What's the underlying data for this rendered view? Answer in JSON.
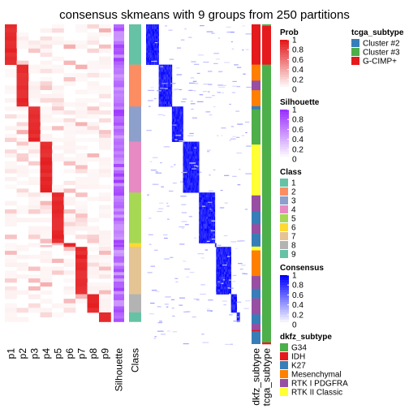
{
  "chart_data": {
    "type": "heatmap",
    "title": "consensus skmeans with 9 groups from 250 partitions",
    "partition_columns": [
      "p1",
      "p2",
      "p3",
      "p4",
      "p5",
      "p6",
      "p7",
      "p8",
      "p9"
    ],
    "annotation_columns": [
      "Silhouette",
      "Class"
    ],
    "right_annotation_columns": [
      "dkfz_subtype",
      "tcga_subtype"
    ],
    "class_blocks": [
      {
        "cls": "1",
        "frac": 0.126
      },
      {
        "cls": "2",
        "frac": 0.131
      },
      {
        "cls": "3",
        "frac": 0.11
      },
      {
        "cls": "4",
        "frac": 0.159
      },
      {
        "cls": "5",
        "frac": 0.158
      },
      {
        "cls": "6",
        "frac": 0.012
      },
      {
        "cls": "7",
        "frac": 0.148
      },
      {
        "cls": "8",
        "frac": 0.057
      },
      {
        "cls": "9",
        "frac": 0.029
      }
    ],
    "legends": {
      "prob": {
        "title": "Prob",
        "ticks": [
          "1",
          "0.8",
          "0.6",
          "0.4",
          "0.2",
          "0"
        ]
      },
      "silhouette": {
        "title": "Silhouette",
        "ticks": [
          "1",
          "0.8",
          "0.6",
          "0.4",
          "0.2",
          "0"
        ]
      },
      "class": {
        "title": "Class",
        "items": [
          {
            "label": "1",
            "color": "#66C2A5"
          },
          {
            "label": "2",
            "color": "#FC8D62"
          },
          {
            "label": "3",
            "color": "#8DA0CB"
          },
          {
            "label": "4",
            "color": "#E78AC3"
          },
          {
            "label": "5",
            "color": "#A6D854"
          },
          {
            "label": "6",
            "color": "#FFD92F"
          },
          {
            "label": "7",
            "color": "#E5C494"
          },
          {
            "label": "8",
            "color": "#B3B3B3"
          },
          {
            "label": "9",
            "color": "#66C2A5"
          }
        ]
      },
      "consensus": {
        "title": "Consensus",
        "ticks": [
          "1",
          "0.8",
          "0.6",
          "0.4",
          "0.2",
          "0"
        ]
      },
      "dkfz_subtype": {
        "title": "dkfz_subtype",
        "items": [
          {
            "label": "G34",
            "color": "#4DAF4A"
          },
          {
            "label": "IDH",
            "color": "#E41A1C"
          },
          {
            "label": "K27",
            "color": "#377EB8"
          },
          {
            "label": "Mesenchymal",
            "color": "#FF7F00"
          },
          {
            "label": "RTK I PDGFRA",
            "color": "#984EA3"
          },
          {
            "label": "RTK II Classic",
            "color": "#FFFF33"
          }
        ]
      },
      "tcga_subtype": {
        "title": "tcga_subtype",
        "items": [
          {
            "label": "Cluster #2",
            "color": "#377EB8"
          },
          {
            "label": "Cluster #3",
            "color": "#4DAF4A"
          },
          {
            "label": "G-CIMP+",
            "color": "#E41A1C"
          }
        ]
      }
    },
    "colors": {
      "prob_high": "#E41A1C",
      "silhouette_high": "#9B30FF",
      "consensus_high": "#0000FF",
      "low": "#FFFFFF"
    }
  }
}
